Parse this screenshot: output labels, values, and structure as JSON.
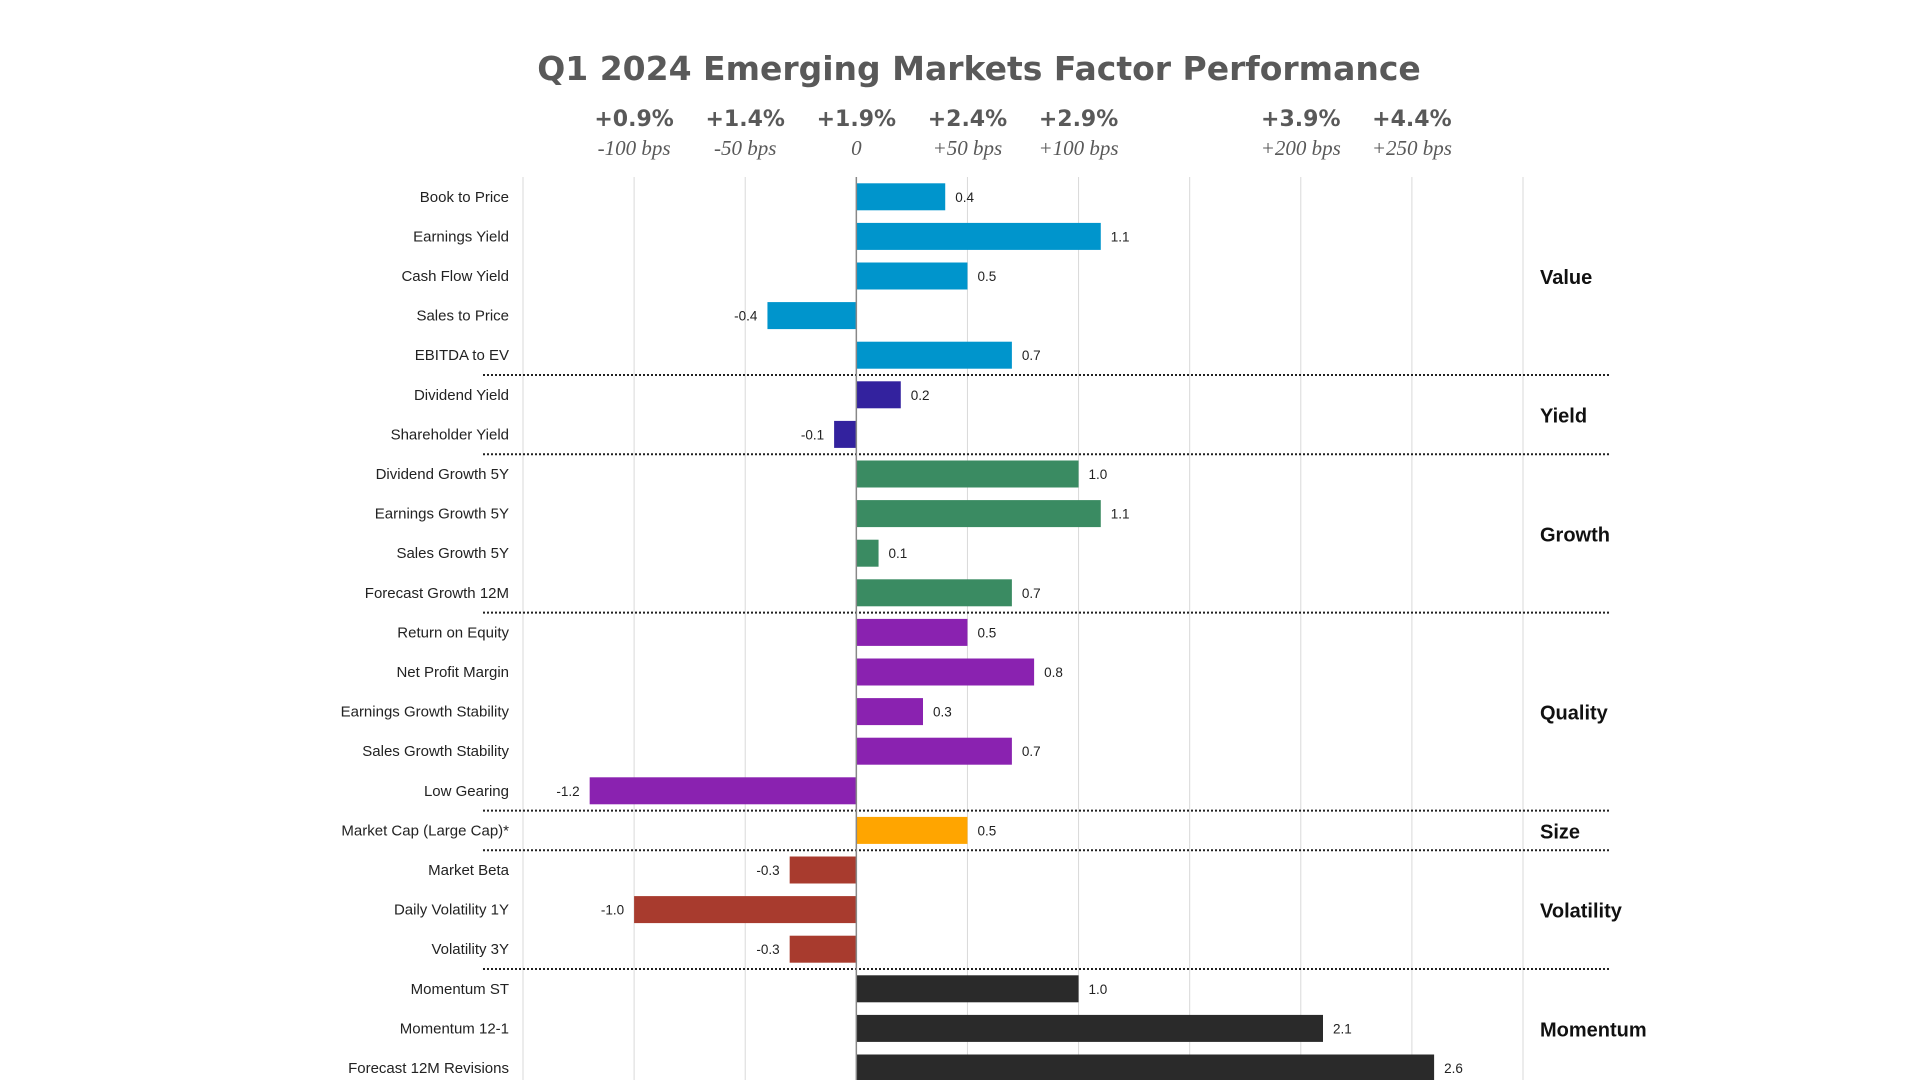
{
  "chart_data": {
    "type": "bar",
    "orientation": "horizontal",
    "title": "Q1 2024 Emerging Markets Factor Performance",
    "xlim": [
      -1.5,
      3.0
    ],
    "grid": true,
    "top_axis": [
      {
        "value": -1.0,
        "return": "+0.9%",
        "bps": "-100 bps"
      },
      {
        "value": -0.5,
        "return": "+1.4%",
        "bps": "-50 bps"
      },
      {
        "value": 0.0,
        "return": "+1.9%",
        "bps": "0"
      },
      {
        "value": 0.5,
        "return": "+2.4%",
        "bps": "+50 bps"
      },
      {
        "value": 1.0,
        "return": "+2.9%",
        "bps": "+100 bps"
      },
      {
        "value": 2.0,
        "return": "+3.9%",
        "bps": "+200 bps"
      },
      {
        "value": 2.5,
        "return": "+4.4%",
        "bps": "+250 bps"
      }
    ],
    "groups": [
      {
        "name": "Value",
        "color": "#0095CC",
        "items": [
          {
            "label": "Book to Price",
            "value": 0.4
          },
          {
            "label": "Earnings Yield",
            "value": 1.1
          },
          {
            "label": "Cash Flow Yield",
            "value": 0.5
          },
          {
            "label": "Sales to Price",
            "value": -0.4
          },
          {
            "label": "EBITDA to EV",
            "value": 0.7
          }
        ]
      },
      {
        "name": "Yield",
        "color": "#33229E",
        "items": [
          {
            "label": "Dividend Yield",
            "value": 0.2
          },
          {
            "label": "Shareholder Yield",
            "value": -0.1
          }
        ]
      },
      {
        "name": "Growth",
        "color": "#3A8B62",
        "items": [
          {
            "label": "Dividend Growth 5Y",
            "value": 1.0
          },
          {
            "label": "Earnings Growth 5Y",
            "value": 1.1
          },
          {
            "label": "Sales Growth 5Y",
            "value": 0.1
          },
          {
            "label": "Forecast Growth 12M",
            "value": 0.7
          }
        ]
      },
      {
        "name": "Quality",
        "color": "#8A22B0",
        "items": [
          {
            "label": "Return on Equity",
            "value": 0.5
          },
          {
            "label": "Net Profit Margin",
            "value": 0.8
          },
          {
            "label": "Earnings Growth Stability",
            "value": 0.3
          },
          {
            "label": "Sales Growth Stability",
            "value": 0.7
          },
          {
            "label": "Low Gearing",
            "value": -1.2
          }
        ]
      },
      {
        "name": "Size",
        "color": "#FFA500",
        "items": [
          {
            "label": "Market Cap (Large Cap)*",
            "value": 0.5
          }
        ]
      },
      {
        "name": "Volatility",
        "color": "#A83B2E",
        "items": [
          {
            "label": "Market Beta",
            "value": -0.3
          },
          {
            "label": "Daily Volatility 1Y",
            "value": -1.0
          },
          {
            "label": "Volatility 3Y",
            "value": -0.3
          }
        ]
      },
      {
        "name": "Momentum",
        "color": "#2A2A2A",
        "items": [
          {
            "label": "Momentum ST",
            "value": 1.0
          },
          {
            "label": "Momentum 12-1",
            "value": 2.1
          },
          {
            "label": "Forecast 12M Revisions",
            "value": 2.6
          }
        ]
      }
    ]
  }
}
